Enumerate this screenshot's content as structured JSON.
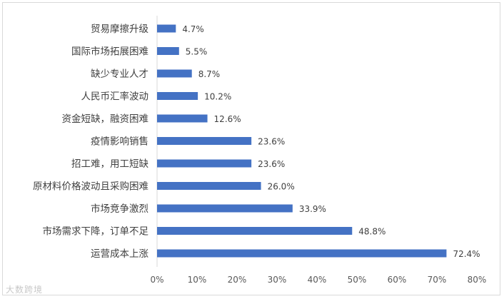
{
  "chart_data": {
    "type": "bar",
    "orientation": "horizontal",
    "categories": [
      "贸易摩擦升级",
      "国际市场拓展困难",
      "缺少专业人才",
      "人民币汇率波动",
      "资金短缺，融资困难",
      "疫情影响销售",
      "招工难，用工短缺",
      "原材料价格波动且采购困难",
      "市场竞争激烈",
      "市场需求下降，订单不足",
      "运营成本上涨"
    ],
    "values": [
      4.7,
      5.5,
      8.7,
      10.2,
      12.6,
      23.6,
      23.6,
      26.0,
      33.9,
      48.8,
      72.4
    ],
    "value_labels": [
      "4.7%",
      "5.5%",
      "8.7%",
      "10.2%",
      "12.6%",
      "23.6%",
      "23.6%",
      "26.0%",
      "33.9%",
      "48.8%",
      "72.4%"
    ],
    "x_ticks": [
      "0%",
      "10%",
      "20%",
      "30%",
      "40%",
      "50%",
      "60%",
      "70%",
      "80%"
    ],
    "xlim": [
      0,
      80
    ],
    "title": "",
    "xlabel": "",
    "ylabel": "",
    "grid": false,
    "legend": "none",
    "bar_color": "#4472c4"
  },
  "watermark": "大数跨境"
}
